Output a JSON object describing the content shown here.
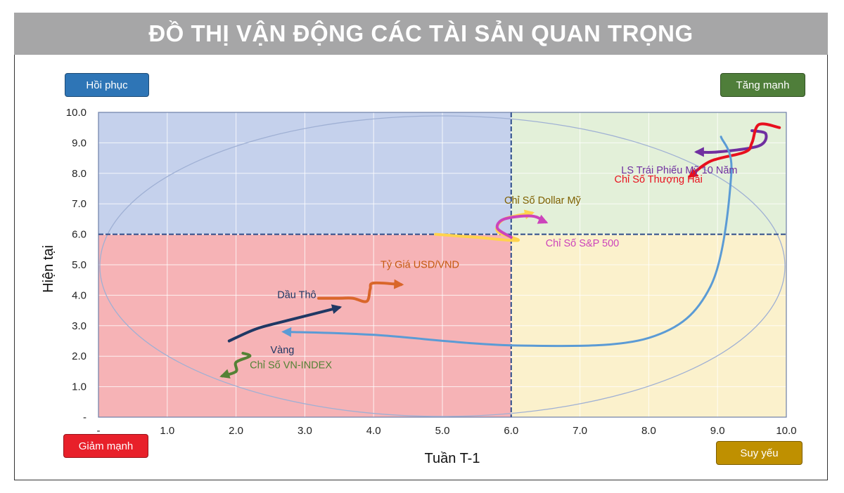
{
  "header": {
    "title": "ĐỒ THỊ VẬN ĐỘNG CÁC TÀI SẢN QUAN TRỌNG"
  },
  "quadrant_labels": {
    "top_left": "Hồi phục",
    "top_right": "Tăng mạnh",
    "bottom_left": "Giảm mạnh",
    "bottom_right": "Suy yếu"
  },
  "colors": {
    "banner": "#a6a6a7",
    "q_top_left": "#c5d1ec",
    "q_top_right": "#e3f0d9",
    "q_bottom_left": "#f6b3b6",
    "q_bottom_right": "#fbf1cc",
    "badge_top_left": "#2e75b6",
    "badge_top_right": "#4f7e3a",
    "badge_bottom_left": "#e8202a",
    "badge_bottom_right": "#bf9000"
  },
  "chart_data": {
    "type": "line",
    "xlabel": "Tuần T-1",
    "ylabel": "Hiện tại",
    "xlim": [
      0,
      10
    ],
    "ylim": [
      0,
      10
    ],
    "divider_x": 6.0,
    "divider_y": 6.0,
    "x_ticks": [
      "-",
      "1.0",
      "2.0",
      "3.0",
      "4.0",
      "5.0",
      "6.0",
      "7.0",
      "8.0",
      "9.0",
      "10.0"
    ],
    "y_ticks": [
      "-",
      "1.0",
      "2.0",
      "3.0",
      "4.0",
      "5.0",
      "6.0",
      "7.0",
      "8.0",
      "9.0",
      "10.0"
    ],
    "grid": true,
    "series": [
      {
        "name": "LS Trái Phiếu Mỹ 10 Năm",
        "color": "#7030a0",
        "points": [
          [
            9.5,
            9.4
          ],
          [
            9.7,
            9.3
          ],
          [
            9.6,
            8.9
          ],
          [
            9.0,
            8.7
          ],
          [
            8.7,
            8.7
          ]
        ]
      },
      {
        "name": "Chỉ Số Thượng Hải",
        "color": "#e8101e",
        "points": [
          [
            9.9,
            9.5
          ],
          [
            9.6,
            9.6
          ],
          [
            9.5,
            9.0
          ],
          [
            9.4,
            8.7
          ],
          [
            8.9,
            8.4
          ],
          [
            8.6,
            7.9
          ]
        ]
      },
      {
        "name": "Chỉ Số Dollar Mỹ",
        "color": "#ffd34d",
        "points": [
          [
            4.9,
            6.0
          ],
          [
            5.5,
            5.9
          ],
          [
            6.1,
            5.8
          ],
          [
            5.8,
            6.1
          ],
          [
            5.9,
            6.5
          ],
          [
            6.3,
            6.7
          ]
        ]
      },
      {
        "name": "Chỉ Số S&P 500",
        "color": "#cc44bb",
        "points": [
          [
            6.0,
            5.9
          ],
          [
            5.8,
            6.2
          ],
          [
            5.9,
            6.5
          ],
          [
            6.3,
            6.6
          ],
          [
            6.5,
            6.4
          ]
        ]
      },
      {
        "name": "Tỷ Giá USD/VND",
        "color": "#d9662a",
        "points": [
          [
            3.2,
            3.9
          ],
          [
            3.5,
            3.9
          ],
          [
            3.7,
            3.9
          ],
          [
            3.9,
            3.8
          ],
          [
            3.95,
            4.2
          ],
          [
            4.0,
            4.4
          ],
          [
            4.4,
            4.35
          ]
        ]
      },
      {
        "name": "Dầu Thô",
        "color": "#1f3864",
        "points": [
          [
            1.9,
            2.5
          ],
          [
            2.3,
            2.9
          ],
          [
            2.8,
            3.2
          ],
          [
            3.5,
            3.6
          ]
        ]
      },
      {
        "name": "Vàng",
        "color": "#548235",
        "points": [
          [
            2.1,
            2.1
          ],
          [
            2.2,
            2.0
          ],
          [
            2.0,
            1.8
          ],
          [
            2.0,
            1.5
          ],
          [
            1.8,
            1.35
          ]
        ]
      },
      {
        "name": "Chỉ Số VN-INDEX",
        "color": "#5b9bd5",
        "points": [
          [
            9.05,
            9.2
          ],
          [
            9.2,
            8.0
          ],
          [
            8.9,
            4.3
          ],
          [
            8.0,
            2.6
          ],
          [
            6.1,
            2.35
          ],
          [
            4.0,
            2.7
          ],
          [
            2.7,
            2.8
          ]
        ]
      }
    ],
    "annotations": [
      {
        "text": "LS Trái Phiếu Mỹ 10 Năm",
        "x": 7.6,
        "y": 8.0,
        "color": "#7030a0"
      },
      {
        "text": "Chỉ Số Thượng Hải",
        "x": 7.5,
        "y": 7.7,
        "color": "#e8101e"
      },
      {
        "text": "Chỉ Số Dollar Mỹ",
        "x": 5.9,
        "y": 7.0,
        "color": "#7f6000"
      },
      {
        "text": "Chỉ Số S&P 500",
        "x": 6.5,
        "y": 5.6,
        "color": "#cc44bb"
      },
      {
        "text": "Tỷ Giá USD/VND",
        "x": 4.1,
        "y": 4.9,
        "color": "#c55a11"
      },
      {
        "text": "Dầu Thô",
        "x": 2.6,
        "y": 3.9,
        "color": "#1f3864"
      },
      {
        "text": "Vàng",
        "x": 2.5,
        "y": 2.1,
        "color": "#1f3864"
      },
      {
        "text": "Chỉ Số VN-INDEX",
        "x": 2.2,
        "y": 1.6,
        "color": "#548235"
      }
    ]
  }
}
